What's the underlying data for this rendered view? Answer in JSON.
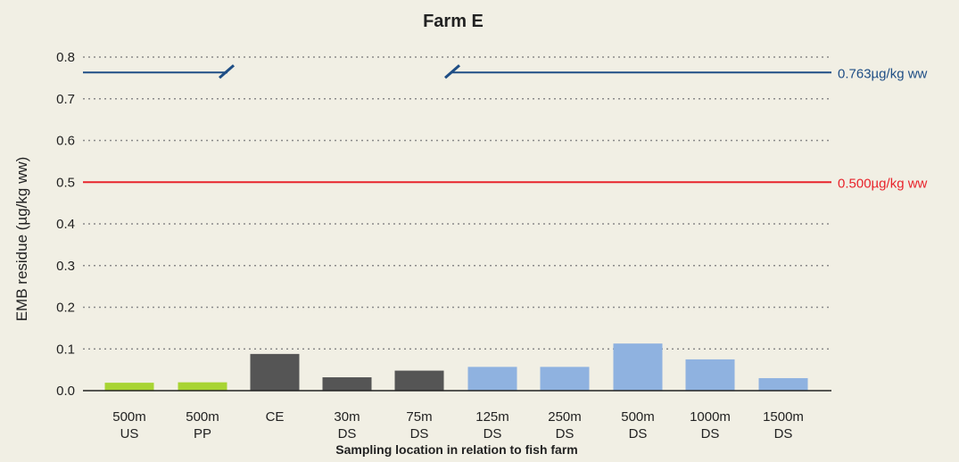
{
  "chart_data": {
    "type": "bar",
    "title": "Farm E",
    "xlabel": "Sampling location in relation to fish farm",
    "ylabel": "EMB residue (µg/kg ww)",
    "ylim": [
      0,
      0.8
    ],
    "yticks": [
      "0.0",
      "0.1",
      "0.2",
      "0.3",
      "0.4",
      "0.5",
      "0.6",
      "0.7",
      "0.8"
    ],
    "grid": true,
    "categories": [
      {
        "line1": "500m",
        "line2": "US"
      },
      {
        "line1": "500m",
        "line2": "PP"
      },
      {
        "line1": "CE",
        "line2": ""
      },
      {
        "line1": "30m",
        "line2": "DS"
      },
      {
        "line1": "75m",
        "line2": "DS"
      },
      {
        "line1": "125m",
        "line2": "DS"
      },
      {
        "line1": "250m",
        "line2": "DS"
      },
      {
        "line1": "500m",
        "line2": "DS"
      },
      {
        "line1": "1000m",
        "line2": "DS"
      },
      {
        "line1": "1500m",
        "line2": "DS"
      }
    ],
    "values": [
      0.019,
      0.02,
      0.088,
      0.032,
      0.048,
      0.057,
      0.057,
      0.113,
      0.075,
      0.03
    ],
    "bar_colors": [
      "#a8d433",
      "#a8d433",
      "#555555",
      "#555555",
      "#555555",
      "#8fb2e0",
      "#8fb2e0",
      "#8fb2e0",
      "#8fb2e0",
      "#8fb2e0"
    ],
    "reference_lines": [
      {
        "value": 0.763,
        "label": "0.763µg/kg ww",
        "color": "#1f4e85",
        "broken": true
      },
      {
        "value": 0.5,
        "label": "0.500µg/kg ww",
        "color": "#e8232b",
        "broken": false
      }
    ]
  }
}
